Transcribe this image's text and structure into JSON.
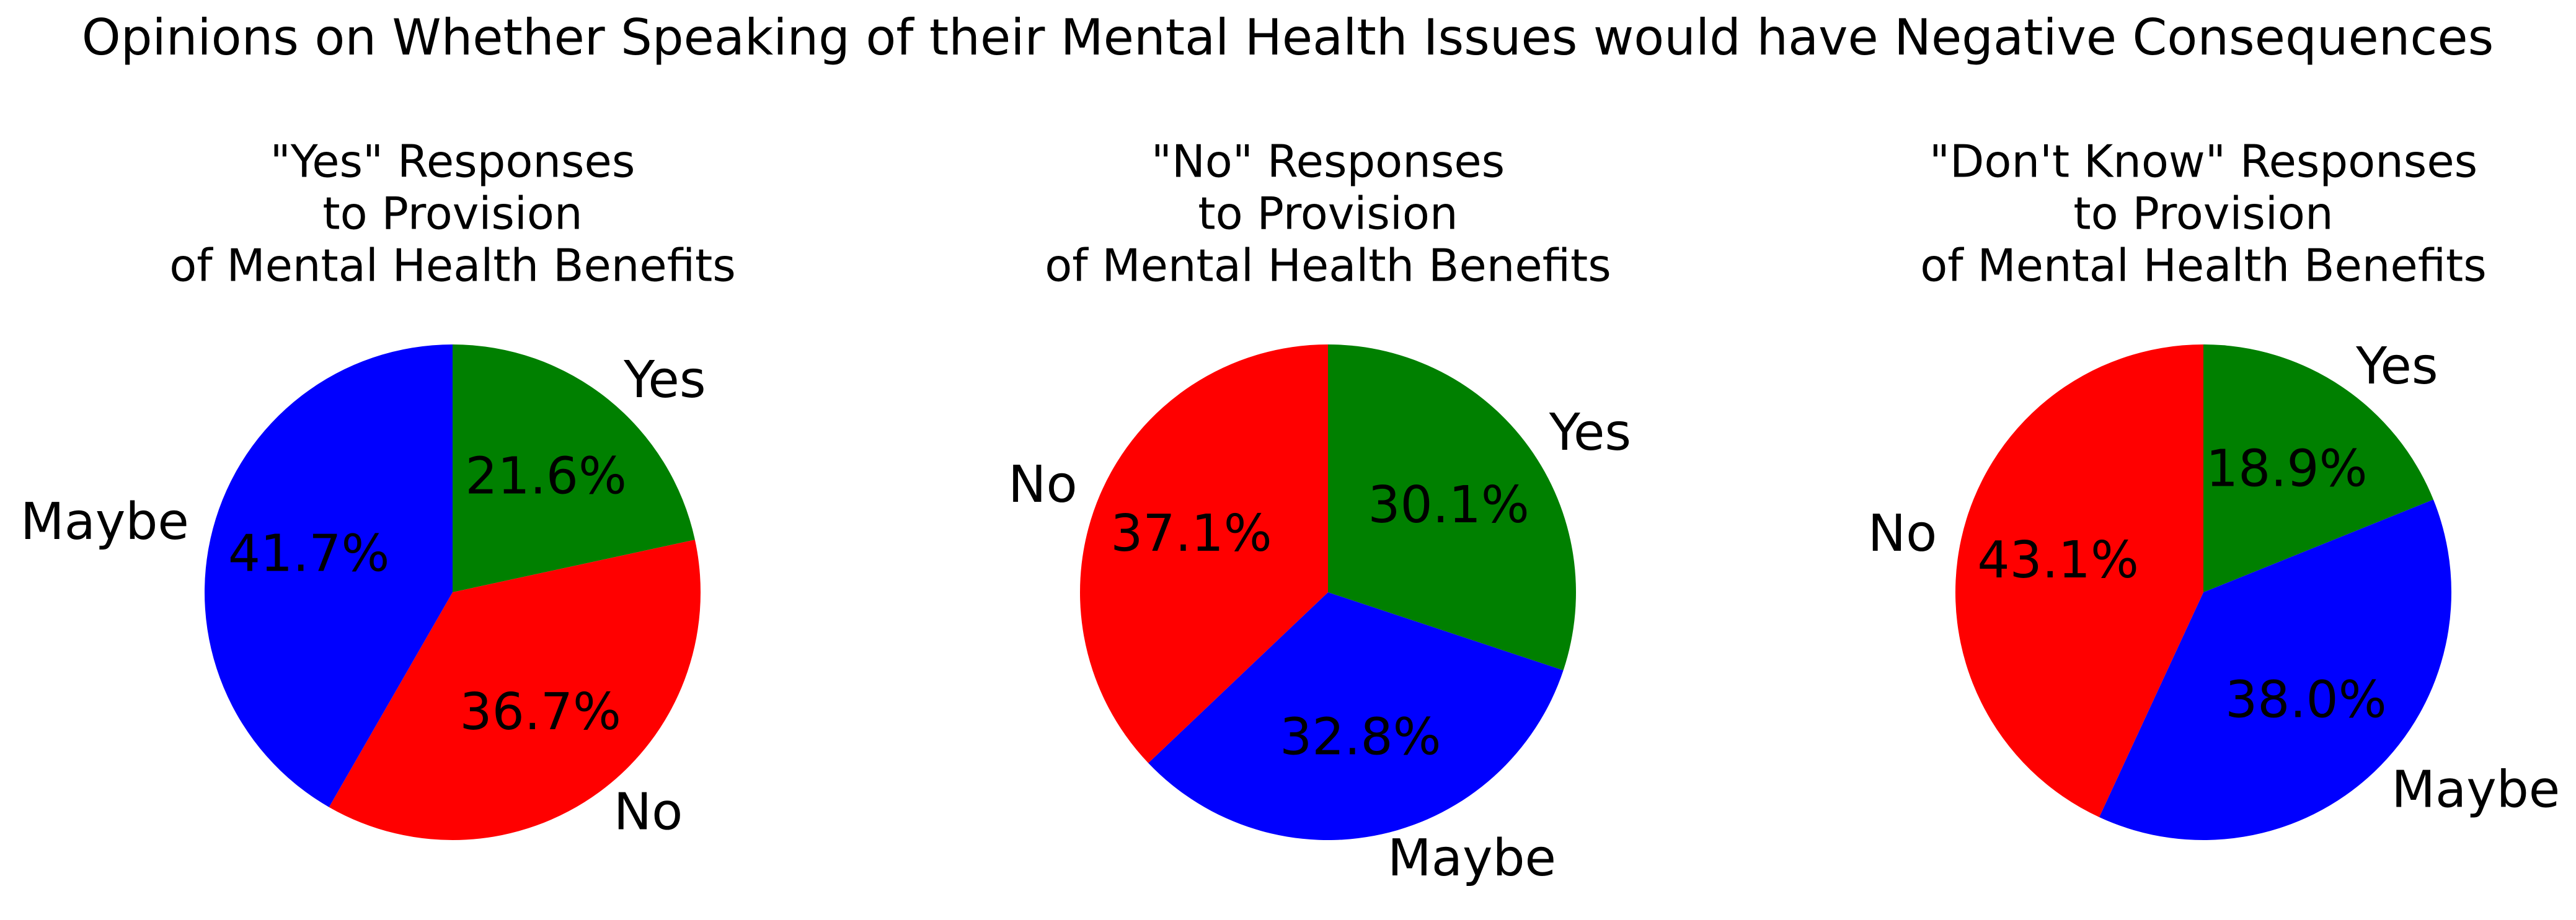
{
  "figure": {
    "title": "Opinions on Whether Speaking of their Mental Health Issues would have Negative Consequences"
  },
  "chart_data": [
    {
      "type": "pie",
      "title_lines": [
        "\"Yes\" Responses",
        "to Provision",
        "of Mental Health Benefits"
      ],
      "start_angle_deg": 90,
      "direction": "clockwise",
      "slices": [
        {
          "label": "Yes",
          "percent_label": "21.6%",
          "value": 21.6,
          "color": "#008000"
        },
        {
          "label": "No",
          "percent_label": "36.7%",
          "value": 36.7,
          "color": "#ff0000"
        },
        {
          "label": "Maybe",
          "percent_label": "41.7%",
          "value": 41.7,
          "color": "#0000ff"
        }
      ]
    },
    {
      "type": "pie",
      "title_lines": [
        "\"No\" Responses",
        "to Provision",
        "of Mental Health Benefits"
      ],
      "start_angle_deg": 90,
      "direction": "clockwise",
      "slices": [
        {
          "label": "Yes",
          "percent_label": "30.1%",
          "value": 30.1,
          "color": "#008000"
        },
        {
          "label": "Maybe",
          "percent_label": "32.8%",
          "value": 32.8,
          "color": "#0000ff"
        },
        {
          "label": "No",
          "percent_label": "37.1%",
          "value": 37.1,
          "color": "#ff0000"
        }
      ]
    },
    {
      "type": "pie",
      "title_lines": [
        "\"Don't Know\" Responses",
        "to Provision",
        "of Mental Health Benefits"
      ],
      "start_angle_deg": 90,
      "direction": "clockwise",
      "slices": [
        {
          "label": "Yes",
          "percent_label": "18.9%",
          "value": 18.9,
          "color": "#008000"
        },
        {
          "label": "Maybe",
          "percent_label": "38.0%",
          "value": 38.0,
          "color": "#0000ff"
        },
        {
          "label": "No",
          "percent_label": "43.1%",
          "value": 43.1,
          "color": "#ff0000"
        }
      ]
    }
  ]
}
